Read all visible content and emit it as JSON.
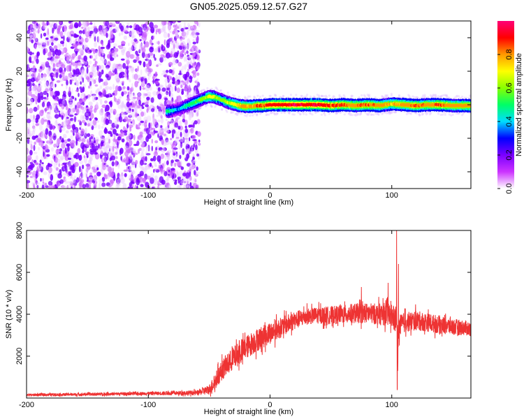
{
  "figure": {
    "title": "GN05.2025.059.12.57.G27"
  },
  "chart_data": [
    {
      "type": "heatmap",
      "title": "GN05.2025.059.12.57.G27",
      "xlabel": "Height of straight line (km)",
      "ylabel": "Frequency (Hz)",
      "xlim": [
        -200,
        165
      ],
      "ylim": [
        -50,
        50
      ],
      "x_ticks": [
        -200,
        -100,
        0,
        100
      ],
      "y_ticks": [
        -40,
        -20,
        0,
        20,
        40
      ],
      "colorbar": {
        "label": "Normalized spectral amplitude",
        "range": [
          0,
          1
        ],
        "ticks": [
          0.0,
          0.2,
          0.4,
          0.6,
          0.8
        ],
        "colors": [
          "#ffffff",
          "#cc33ff",
          "#7a00ff",
          "#0000ff",
          "#00ddff",
          "#00ff66",
          "#88ff00",
          "#ffff00",
          "#ff9900",
          "#ff0000",
          "#ff0077"
        ]
      },
      "noise_region_x": [
        -200,
        -58
      ],
      "signal_trace": {
        "x": [
          -85,
          -80,
          -75,
          -70,
          -65,
          -60,
          -55,
          -50,
          -45,
          -40,
          -35,
          -30,
          -25,
          -20,
          -15,
          -10,
          -5,
          0,
          10,
          20,
          30,
          40,
          50,
          60,
          70,
          80,
          90,
          100,
          110,
          120,
          130,
          140,
          150,
          160,
          165
        ],
        "frequency": [
          -4,
          -3.5,
          -2.5,
          -1,
          0.5,
          2,
          3.5,
          5,
          4.5,
          3,
          1.5,
          0.5,
          -0.5,
          -1,
          -1,
          -0.5,
          -0.5,
          0,
          0,
          0,
          0,
          0,
          -0.5,
          0,
          -0.5,
          0,
          -0.5,
          0.5,
          0,
          -0.5,
          0,
          0,
          -0.5,
          -0.5,
          -0.5
        ],
        "amplitude": [
          0.5,
          0.45,
          0.35,
          0.45,
          0.5,
          0.55,
          0.6,
          0.7,
          0.65,
          0.6,
          0.65,
          0.7,
          0.75,
          0.8,
          0.75,
          0.85,
          0.85,
          0.9,
          0.9,
          0.95,
          0.9,
          0.95,
          0.85,
          0.85,
          0.8,
          0.85,
          0.8,
          0.75,
          0.8,
          0.85,
          0.8,
          0.85,
          0.8,
          0.8,
          0.8
        ]
      }
    },
    {
      "type": "line",
      "title": "",
      "xlabel": "Height of straight line (km)",
      "ylabel": "SNR (10 * v/v)",
      "xlim": [
        -200,
        165
      ],
      "ylim": [
        0,
        8000
      ],
      "x_ticks": [
        -200,
        -100,
        0,
        100
      ],
      "y_ticks": [
        2000,
        4000,
        6000,
        8000
      ],
      "series": [
        {
          "color": "#ee3333",
          "envelope_x": [
            -200,
            -150,
            -100,
            -60,
            -50,
            -45,
            -40,
            -30,
            -20,
            -10,
            0,
            10,
            20,
            30,
            40,
            50,
            60,
            70,
            80,
            90,
            95,
            100,
            103,
            104,
            105,
            106,
            110,
            120,
            130,
            140,
            150,
            160,
            165
          ],
          "envelope_mean": [
            150,
            180,
            220,
            250,
            400,
            800,
            1300,
            1900,
            2400,
            2800,
            3100,
            3400,
            3700,
            3900,
            3950,
            3950,
            4000,
            4050,
            4050,
            4000,
            4000,
            3900,
            3700,
            3800,
            2300,
            3400,
            3600,
            3700,
            3600,
            3500,
            3400,
            3350,
            3300
          ],
          "envelope_spread": [
            80,
            90,
            100,
            150,
            300,
            500,
            600,
            700,
            700,
            700,
            650,
            600,
            550,
            500,
            500,
            550,
            550,
            600,
            600,
            650,
            700,
            700,
            800,
            800,
            1200,
            700,
            600,
            600,
            550,
            550,
            500,
            450,
            450
          ],
          "spikes": [
            {
              "x": 104,
              "y": 8000
            },
            {
              "x": 104.5,
              "y": 400
            },
            {
              "x": 97,
              "y": 5500
            },
            {
              "x": 75,
              "y": 5300
            },
            {
              "x": 105.5,
              "y": 6400
            }
          ]
        }
      ]
    }
  ]
}
